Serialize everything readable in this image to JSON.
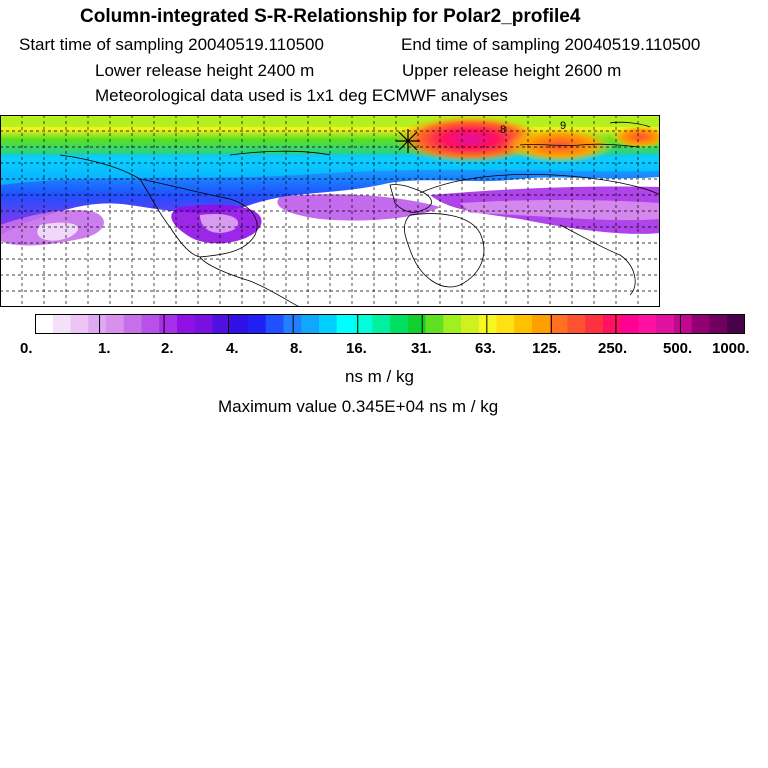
{
  "header": {
    "title": "Column-integrated S-R-Relationship for Polar2_profile4",
    "start_time": "Start time of sampling 20040519.110500",
    "end_time": "End time of sampling 20040519.110500",
    "lower_height": "Lower release height 2400 m",
    "upper_height": "Upper release height 2600 m",
    "met_data": "Meteorological data used is 1x1 deg ECMWF analyses"
  },
  "map": {
    "projection": "latitude-longitude grid",
    "grid": true,
    "markers": [
      {
        "label": "9",
        "type": "text"
      },
      {
        "label": "8",
        "type": "text"
      },
      {
        "label": "source",
        "type": "star"
      }
    ]
  },
  "colorbar": {
    "tick_labels": [
      "0.",
      "1.",
      "2.",
      "4.",
      "8.",
      "16.",
      "31.",
      "63.",
      "125.",
      "250.",
      "500.",
      "1000."
    ],
    "colors": [
      "#ffffff",
      "#f5e0fa",
      "#ecc4f6",
      "#e0a8f2",
      "#d890ee",
      "#c870ec",
      "#b850ea",
      "#a530e8",
      "#9010e5",
      "#7a10e0",
      "#5010e0",
      "#3010e5",
      "#2020f5",
      "#2050ff",
      "#2080ff",
      "#10a8ff",
      "#00d0ff",
      "#00ffff",
      "#00ffd8",
      "#00f0a0",
      "#00e060",
      "#10d030",
      "#60e020",
      "#a0f020",
      "#d0f020",
      "#f8f820",
      "#ffe010",
      "#ffc000",
      "#ffa000",
      "#ff7020",
      "#ff5030",
      "#ff3040",
      "#ff1060",
      "#ff0090",
      "#ff10a0",
      "#e010a0",
      "#c00890",
      "#900070",
      "#700060",
      "#480048"
    ],
    "units": "ns m / kg",
    "max_value": "Maximum value  0.345E+04 ns m / kg"
  }
}
